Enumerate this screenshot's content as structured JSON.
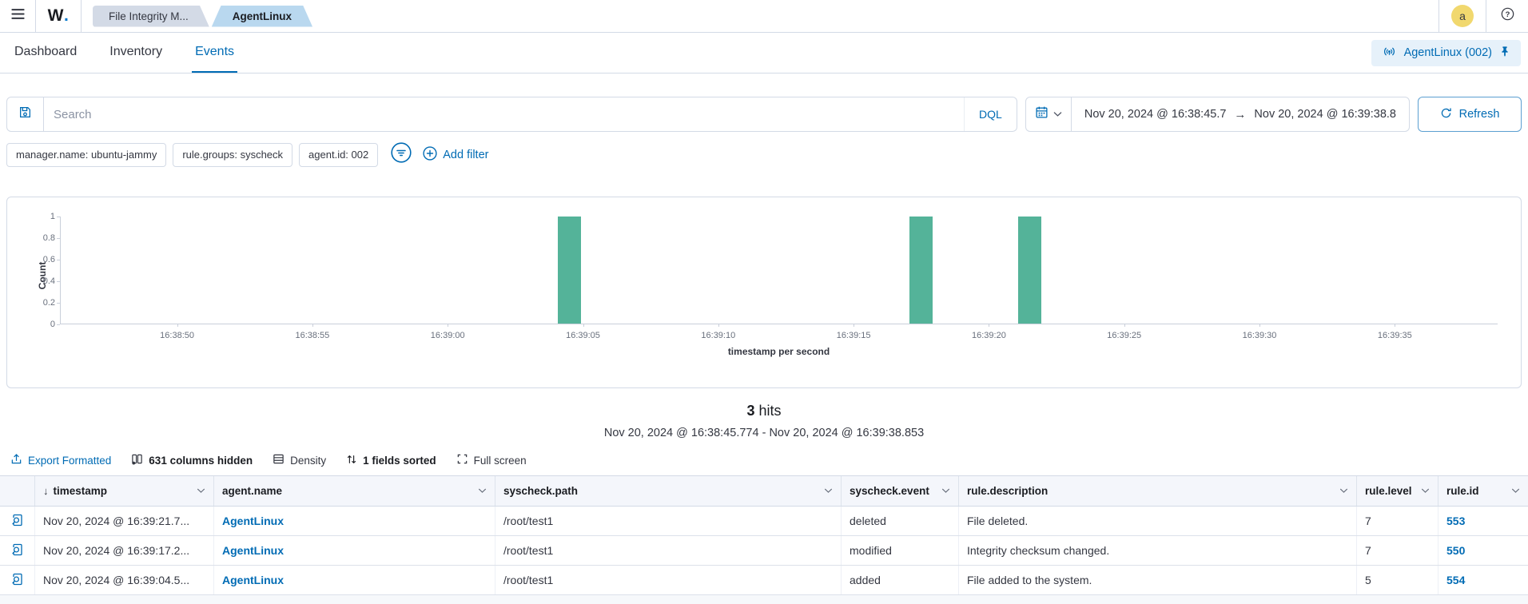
{
  "header": {
    "logo": "W.",
    "breadcrumbs": [
      {
        "label": "File Integrity M..."
      },
      {
        "label": "AgentLinux"
      }
    ],
    "avatar": "a"
  },
  "tabs": {
    "items": [
      "Dashboard",
      "Inventory",
      "Events"
    ],
    "active": "Events",
    "agent_pill": "AgentLinux (002)"
  },
  "search": {
    "placeholder": "Search",
    "value": "",
    "language": "DQL",
    "date_start": "Nov 20, 2024 @ 16:38:45.7",
    "arrow": "→",
    "date_end": "Nov 20, 2024 @ 16:39:38.8",
    "refresh_label": "Refresh"
  },
  "filters": {
    "pills": [
      "manager.name: ubuntu-jammy",
      "rule.groups: syscheck",
      "agent.id: 002"
    ],
    "add_label": "Add filter"
  },
  "chart_data": {
    "type": "bar",
    "title": "",
    "xlabel": "timestamp per second",
    "ylabel": "Count",
    "ylim": [
      0,
      1
    ],
    "yticks": [
      0,
      0.2,
      0.4,
      0.6,
      0.8,
      1
    ],
    "x_domain": [
      "16:38:45.7",
      "16:39:38.8"
    ],
    "xticks": [
      "16:38:50",
      "16:38:55",
      "16:39:00",
      "16:39:05",
      "16:39:10",
      "16:39:15",
      "16:39:20",
      "16:39:25",
      "16:39:30",
      "16:39:35"
    ],
    "bucket_seconds": 1,
    "bars": [
      {
        "time": "16:39:04",
        "count": 1
      },
      {
        "time": "16:39:17",
        "count": 1
      },
      {
        "time": "16:39:21",
        "count": 1
      }
    ],
    "bar_color": "#54B399",
    "grid": false,
    "legend": "none"
  },
  "hits": {
    "count": "3",
    "label": "hits",
    "range": "Nov 20, 2024 @ 16:38:45.774 - Nov 20, 2024 @ 16:39:38.853"
  },
  "toolbar": {
    "export": "Export Formatted",
    "columns_hidden": "631 columns hidden",
    "density": "Density",
    "sorted": "1 fields sorted",
    "fullscreen": "Full screen"
  },
  "table": {
    "columns": [
      {
        "label": "timestamp",
        "sorted": true
      },
      {
        "label": "agent.name"
      },
      {
        "label": "syscheck.path"
      },
      {
        "label": "syscheck.event"
      },
      {
        "label": "rule.description"
      },
      {
        "label": "rule.level"
      },
      {
        "label": "rule.id"
      }
    ],
    "rows": [
      {
        "timestamp": "Nov 20, 2024 @ 16:39:21.7...",
        "agent_name": "AgentLinux",
        "syscheck_path": "/root/test1",
        "syscheck_event": "deleted",
        "rule_description": "File deleted.",
        "rule_level": "7",
        "rule_id": "553"
      },
      {
        "timestamp": "Nov 20, 2024 @ 16:39:17.2...",
        "agent_name": "AgentLinux",
        "syscheck_path": "/root/test1",
        "syscheck_event": "modified",
        "rule_description": "Integrity checksum changed.",
        "rule_level": "7",
        "rule_id": "550"
      },
      {
        "timestamp": "Nov 20, 2024 @ 16:39:04.5...",
        "agent_name": "AgentLinux",
        "syscheck_path": "/root/test1",
        "syscheck_event": "added",
        "rule_description": "File added to the system.",
        "rule_level": "5",
        "rule_id": "554"
      }
    ]
  },
  "icons": {
    "menu": "hamburger",
    "save": "floppy-disk",
    "calendar": "calendar",
    "chevron_down": "chevron-down",
    "refresh": "circular-arrow",
    "filter": "filter-circle",
    "add": "plus-circle",
    "broadcast": "signal-arcs",
    "pin": "pushpin",
    "help": "question-circle",
    "export": "upload-arrow",
    "columns": "table-columns",
    "density": "table-rows",
    "sort": "up-down-arrows",
    "fullscreen": "expand-corners",
    "inspect": "document-magnifier",
    "sort_indicator": "↓"
  },
  "colors": {
    "accent": "#006BB4",
    "bar": "#54B399",
    "border": "#D3DAE6",
    "avatar_bg": "#F1D86E",
    "crumb1_bg": "#D3DAE6",
    "crumb2_bg": "#B9D8EF",
    "pill_bg": "#E6F1FA"
  }
}
